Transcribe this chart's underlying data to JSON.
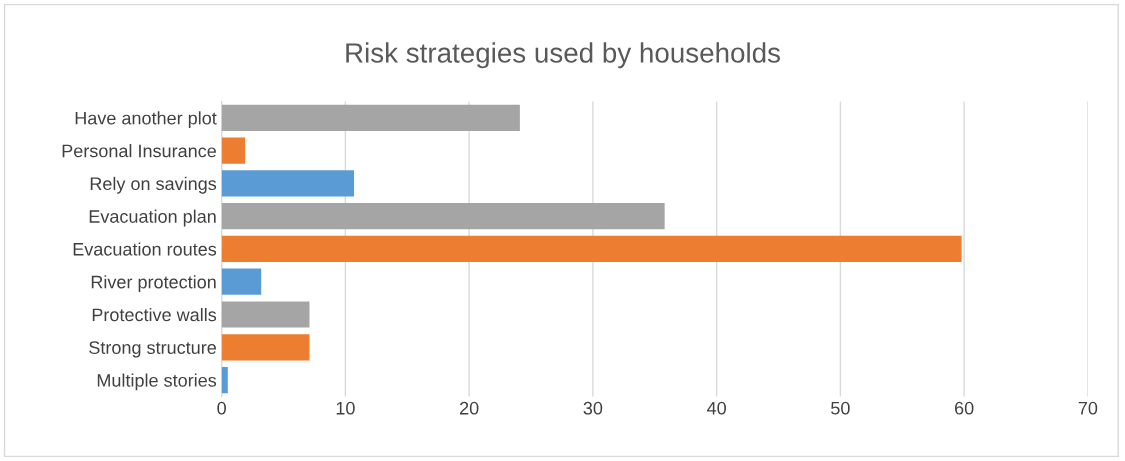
{
  "chart_data": {
    "type": "bar",
    "orientation": "horizontal",
    "title": "Risk strategies used by households",
    "categories": [
      "Have another plot",
      "Personal Insurance",
      "Rely on savings",
      "Evacuation plan",
      "Evacuation routes",
      "River protection",
      "Protective walls",
      "Strong structure",
      "Multiple stories"
    ],
    "values": [
      24.1,
      1.9,
      10.7,
      35.8,
      59.8,
      3.2,
      7.1,
      7.1,
      0.5
    ],
    "colors": [
      "#a5a5a5",
      "#ed7d31",
      "#5b9bd5",
      "#a5a5a5",
      "#ed7d31",
      "#5b9bd5",
      "#a5a5a5",
      "#ed7d31",
      "#5b9bd5"
    ],
    "xlim": [
      0,
      70
    ],
    "xticks": [
      0,
      10,
      20,
      30,
      40,
      50,
      60,
      70
    ],
    "grid": "x",
    "legend": false
  }
}
